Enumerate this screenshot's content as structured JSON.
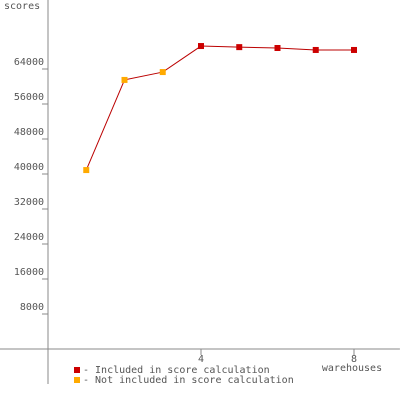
{
  "chart_data": {
    "type": "line",
    "y_label": "scores",
    "x_label": "warehouses",
    "x": [
      1,
      2,
      3,
      4,
      5,
      6,
      7,
      8
    ],
    "series": [
      {
        "name": "- Included in score calculation",
        "color": "#cc0000",
        "values": [
          null,
          null,
          null,
          69250,
          69000,
          68800,
          68350,
          68350
        ]
      },
      {
        "name": "- Not included in score calculation",
        "color": "#ffaa00",
        "values": [
          40900,
          61500,
          63300,
          null,
          null,
          null,
          null,
          null
        ]
      }
    ],
    "line_color": "#bb0000",
    "xlim": [
      0,
      9.2
    ],
    "xticks": [
      4,
      8
    ],
    "ylim": [
      -8000,
      80000
    ],
    "yticks": [
      8000,
      16000,
      24000,
      32000,
      40000,
      48000,
      56000,
      64000
    ]
  }
}
